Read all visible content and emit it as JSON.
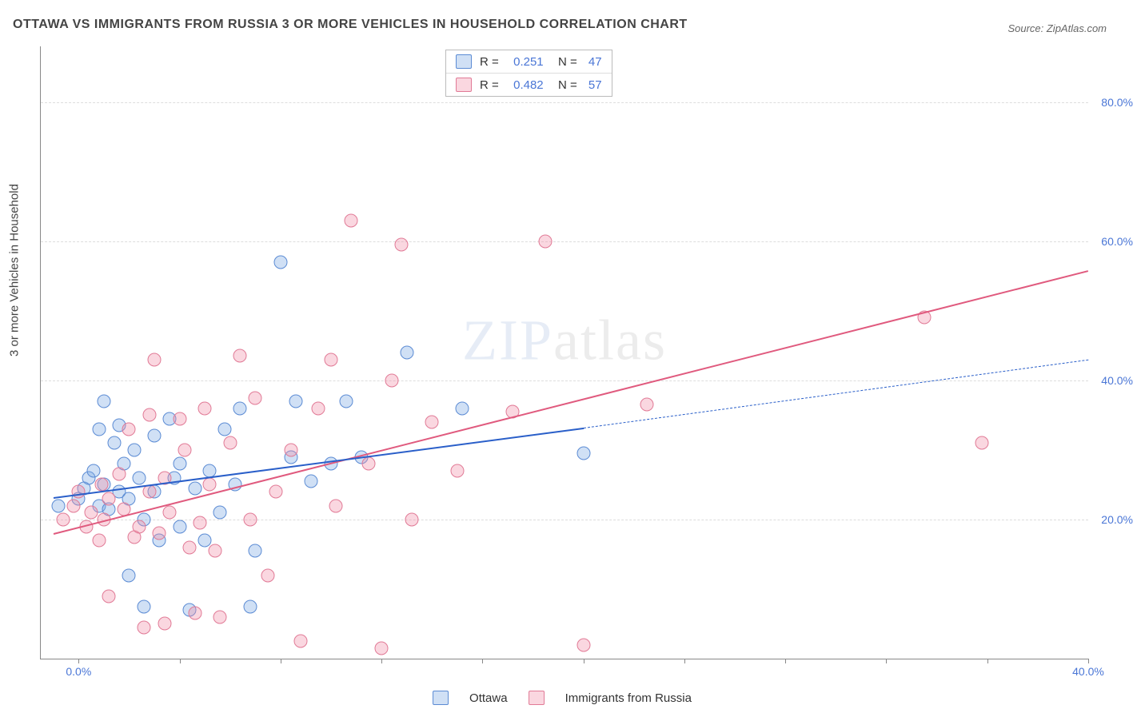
{
  "title": "OTTAWA VS IMMIGRANTS FROM RUSSIA 3 OR MORE VEHICLES IN HOUSEHOLD CORRELATION CHART",
  "source": "Source: ZipAtlas.com",
  "watermark": {
    "a": "ZIP",
    "b": "atlas"
  },
  "xAxis": {
    "min": -1.5,
    "max": 40,
    "ticks": [
      0,
      40
    ],
    "tickLabels": [
      "0.0%",
      "40.0%"
    ],
    "minorTickStep": 4
  },
  "yAxis": {
    "title": "3 or more Vehicles in Household",
    "min": 0,
    "max": 88,
    "ticks": [
      20,
      40,
      60,
      80
    ],
    "tickLabels": [
      "20.0%",
      "40.0%",
      "60.0%",
      "80.0%"
    ]
  },
  "grid_color": "#e2e2e2",
  "tick_label_color": "#4a76d6",
  "series": [
    {
      "name": "Ottawa",
      "fill": "rgba(120,165,225,.35)",
      "stroke": "#5b8bd4",
      "line_stroke": "#2a5fc9",
      "line_dash_ext": "4 4",
      "marker_r": 8.5,
      "trend": {
        "x1": -1,
        "y1": 23.2,
        "x2": 20,
        "y2": 33.2,
        "ext_x2": 40,
        "ext_y2": 43.0
      },
      "points": [
        [
          -0.8,
          22
        ],
        [
          0,
          23
        ],
        [
          0.2,
          24.5
        ],
        [
          0.4,
          26
        ],
        [
          0.6,
          27
        ],
        [
          0.8,
          22
        ],
        [
          0.8,
          33
        ],
        [
          1,
          25
        ],
        [
          1,
          37
        ],
        [
          1.2,
          21.5
        ],
        [
          1.4,
          31
        ],
        [
          1.6,
          24
        ],
        [
          1.8,
          28
        ],
        [
          1.6,
          33.5
        ],
        [
          2,
          23
        ],
        [
          2,
          12
        ],
        [
          2.2,
          30
        ],
        [
          2.4,
          26
        ],
        [
          2.6,
          7.5
        ],
        [
          2.6,
          20
        ],
        [
          3,
          24
        ],
        [
          3,
          32
        ],
        [
          3.2,
          17
        ],
        [
          3.6,
          34.5
        ],
        [
          3.8,
          26
        ],
        [
          4,
          19
        ],
        [
          4,
          28
        ],
        [
          4.4,
          7
        ],
        [
          4.6,
          24.5
        ],
        [
          5,
          17
        ],
        [
          5.2,
          27
        ],
        [
          5.6,
          21
        ],
        [
          5.8,
          33
        ],
        [
          6.2,
          25
        ],
        [
          6.4,
          36
        ],
        [
          6.8,
          7.5
        ],
        [
          7,
          15.5
        ],
        [
          8,
          57
        ],
        [
          8.4,
          29
        ],
        [
          8.6,
          37
        ],
        [
          9.2,
          25.5
        ],
        [
          10,
          28
        ],
        [
          10.6,
          37
        ],
        [
          11.2,
          29
        ],
        [
          13,
          44
        ],
        [
          15.2,
          36
        ],
        [
          20,
          29.5
        ]
      ]
    },
    {
      "name": "Immigrants from Russia",
      "fill": "rgba(240,140,165,.35)",
      "stroke": "#e17a96",
      "line_stroke": "#e05a7e",
      "line_dash_ext": null,
      "marker_r": 8.5,
      "trend": {
        "x1": -1,
        "y1": 18.0,
        "x2": 40,
        "y2": 55.8
      },
      "points": [
        [
          -0.6,
          20
        ],
        [
          -0.2,
          22
        ],
        [
          0,
          24
        ],
        [
          0.3,
          19
        ],
        [
          0.5,
          21
        ],
        [
          0.8,
          17
        ],
        [
          0.9,
          25
        ],
        [
          1,
          20
        ],
        [
          1.2,
          23
        ],
        [
          1.2,
          9
        ],
        [
          1.6,
          26.5
        ],
        [
          1.8,
          21.5
        ],
        [
          2,
          33
        ],
        [
          2.2,
          17.5
        ],
        [
          2.4,
          19
        ],
        [
          2.6,
          4.5
        ],
        [
          2.8,
          24
        ],
        [
          2.8,
          35
        ],
        [
          3,
          43
        ],
        [
          3.2,
          18
        ],
        [
          3.4,
          26
        ],
        [
          3.4,
          5
        ],
        [
          3.6,
          21
        ],
        [
          4,
          34.5
        ],
        [
          4.2,
          30
        ],
        [
          4.4,
          16
        ],
        [
          4.6,
          6.5
        ],
        [
          4.8,
          19.5
        ],
        [
          5,
          36
        ],
        [
          5.2,
          25
        ],
        [
          5.4,
          15.5
        ],
        [
          5.6,
          6
        ],
        [
          6,
          31
        ],
        [
          6.4,
          43.5
        ],
        [
          6.8,
          20
        ],
        [
          7,
          37.5
        ],
        [
          7.5,
          12
        ],
        [
          7.8,
          24
        ],
        [
          8.4,
          30
        ],
        [
          8.8,
          2.5
        ],
        [
          9.5,
          36
        ],
        [
          10,
          43
        ],
        [
          10.2,
          22
        ],
        [
          10.8,
          63
        ],
        [
          11.5,
          28
        ],
        [
          12,
          1.5
        ],
        [
          12.4,
          40
        ],
        [
          12.8,
          59.5
        ],
        [
          13.2,
          20
        ],
        [
          14,
          34
        ],
        [
          15,
          27
        ],
        [
          17.2,
          35.5
        ],
        [
          18.5,
          60
        ],
        [
          20,
          2
        ],
        [
          22.5,
          36.5
        ],
        [
          33.5,
          49
        ],
        [
          35.8,
          31
        ]
      ]
    }
  ],
  "stats": [
    {
      "r": "0.251",
      "n": "47"
    },
    {
      "r": "0.482",
      "n": "57"
    }
  ]
}
